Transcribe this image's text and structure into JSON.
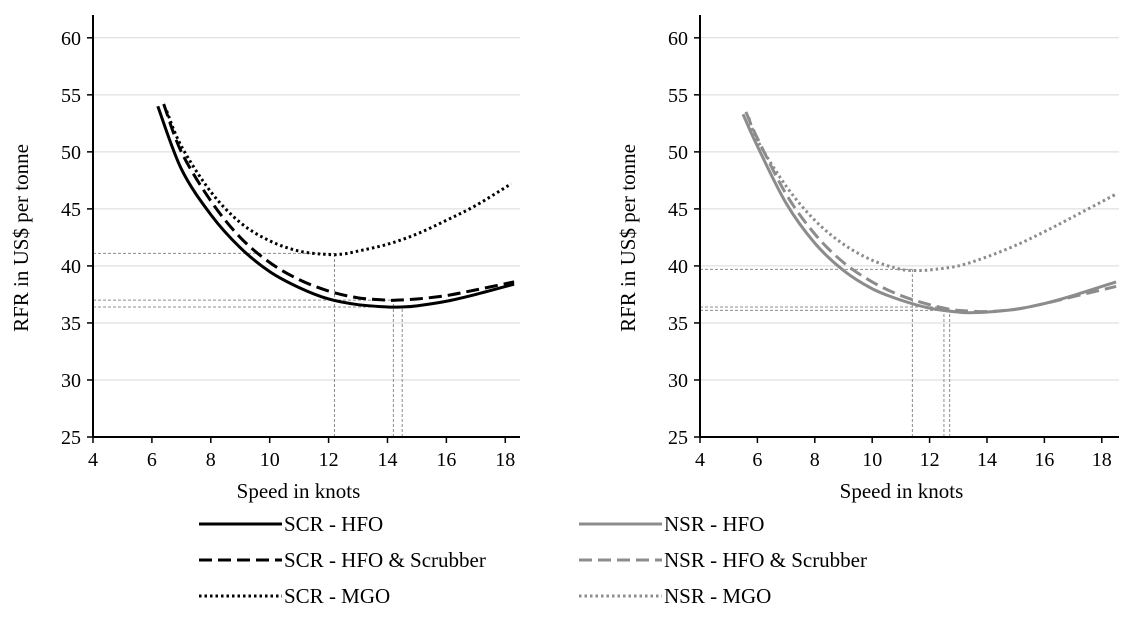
{
  "chart_data": [
    {
      "type": "line",
      "xlabel": "Speed in knots",
      "ylabel": "RFR in US$ per tonne",
      "xlim": [
        4,
        18.5
      ],
      "ylim": [
        25,
        62
      ],
      "xticks": [
        4,
        6,
        8,
        10,
        12,
        14,
        16,
        18
      ],
      "yticks": [
        25,
        30,
        35,
        40,
        45,
        50,
        55,
        60
      ],
      "grid": "horizontal",
      "series": [
        {
          "name": "SCR - HFO",
          "color": "#000000",
          "dash": "solid",
          "x": [
            6.2,
            7,
            8,
            9,
            10,
            11,
            12,
            13,
            14,
            14.5,
            15,
            16,
            17,
            18.3
          ],
          "y": [
            54,
            48.5,
            44.5,
            41.6,
            39.5,
            38.1,
            37.1,
            36.6,
            36.4,
            36.4,
            36.5,
            36.9,
            37.5,
            38.4
          ]
        },
        {
          "name": "SCR - HFO & Scrubber",
          "color": "#000000",
          "dash": "dashed",
          "x": [
            6.4,
            7,
            8,
            9,
            10,
            11,
            12,
            13,
            14,
            14.3,
            15,
            16,
            17,
            18.3
          ],
          "y": [
            54.2,
            50,
            45.7,
            42.5,
            40.3,
            38.8,
            37.8,
            37.2,
            37.0,
            37.0,
            37.1,
            37.4,
            37.9,
            38.6
          ]
        },
        {
          "name": "SCR - MGO",
          "color": "#000000",
          "dash": "dotted",
          "x": [
            6.5,
            7,
            8,
            9,
            10,
            11,
            12,
            12.5,
            13,
            14,
            15,
            16,
            17,
            18.2
          ],
          "y": [
            53.6,
            50.5,
            46.5,
            43.8,
            42.2,
            41.3,
            41.0,
            41.05,
            41.3,
            41.9,
            42.8,
            44.0,
            45.3,
            47.2
          ]
        }
      ],
      "guides": {
        "x": [
          12.2,
          14.2,
          14.5
        ],
        "y": [
          41.1,
          37.0,
          36.4
        ]
      }
    },
    {
      "type": "line",
      "xlabel": "Speed in knots",
      "ylabel": "RFR in US$ per tonne",
      "xlim": [
        4,
        18.6
      ],
      "ylim": [
        25,
        62
      ],
      "xticks": [
        4,
        6,
        8,
        10,
        12,
        14,
        16,
        18
      ],
      "yticks": [
        25,
        30,
        35,
        40,
        45,
        50,
        55,
        60
      ],
      "grid": "horizontal",
      "series": [
        {
          "name": "NSR - HFO",
          "color": "#8c8c8c",
          "dash": "solid",
          "x": [
            5.5,
            6,
            7,
            8,
            9,
            10,
            11,
            12,
            13,
            13.5,
            14,
            15,
            16,
            17,
            18.5
          ],
          "y": [
            53.3,
            50.5,
            45.5,
            42.0,
            39.6,
            38.0,
            37.0,
            36.3,
            35.95,
            35.9,
            35.95,
            36.2,
            36.7,
            37.4,
            38.6
          ]
        },
        {
          "name": "NSR - HFO & Scrubber",
          "color": "#8c8c8c",
          "dash": "dashed",
          "x": [
            5.6,
            6,
            7,
            8,
            9,
            10,
            11,
            12,
            12.7,
            13,
            14,
            15,
            16,
            17,
            18.5
          ],
          "y": [
            53.5,
            51.2,
            46.3,
            42.8,
            40.3,
            38.6,
            37.4,
            36.6,
            36.2,
            36.1,
            36.0,
            36.2,
            36.7,
            37.3,
            38.2
          ]
        },
        {
          "name": "NSR - MGO",
          "color": "#8c8c8c",
          "dash": "dotted",
          "x": [
            5.7,
            6,
            7,
            8,
            9,
            10,
            11,
            11.5,
            12,
            13,
            14,
            15,
            16,
            17,
            18.5
          ],
          "y": [
            53.0,
            51.0,
            47.0,
            44.0,
            41.9,
            40.5,
            39.7,
            39.6,
            39.65,
            40.0,
            40.8,
            41.8,
            43.0,
            44.3,
            46.3
          ]
        }
      ],
      "guides": {
        "x": [
          11.4,
          12.5,
          12.7
        ],
        "y": [
          39.7,
          36.4,
          36.1
        ]
      }
    }
  ],
  "legend": [
    {
      "label": "SCR - HFO",
      "color": "#000000",
      "dash": "solid"
    },
    {
      "label": "NSR - HFO",
      "color": "#8c8c8c",
      "dash": "solid"
    },
    {
      "label": "SCR - HFO & Scrubber",
      "color": "#000000",
      "dash": "dashed"
    },
    {
      "label": "NSR - HFO & Scrubber",
      "color": "#8c8c8c",
      "dash": "dashed"
    },
    {
      "label": "SCR - MGO",
      "color": "#000000",
      "dash": "dotted"
    },
    {
      "label": "NSR - MGO",
      "color": "#8c8c8c",
      "dash": "dotted"
    }
  ]
}
